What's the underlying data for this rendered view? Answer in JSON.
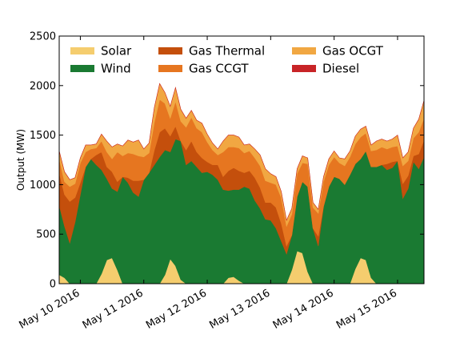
{
  "chart_data": {
    "type": "area",
    "stacked": true,
    "title": "",
    "xlabel": "",
    "ylabel": "Output (MW)",
    "ylim": [
      0,
      2500
    ],
    "yticks": [
      0,
      500,
      1000,
      1500,
      2000,
      2500
    ],
    "xlim": [
      "2016-05-09T16:00",
      "2016-05-15T10:00"
    ],
    "xticks": [
      {
        "x": "2016-05-10T00:00",
        "label": "May 10 2016"
      },
      {
        "x": "2016-05-11T00:00",
        "label": "May 11 2016"
      },
      {
        "x": "2016-05-12T00:00",
        "label": "May 12 2016"
      },
      {
        "x": "2016-05-13T00:00",
        "label": "May 13 2016"
      },
      {
        "x": "2016-05-14T00:00",
        "label": "May 14 2016"
      },
      {
        "x": "2016-05-15T00:00",
        "label": "May 15 2016"
      }
    ],
    "grid": false,
    "legend": {
      "placement": "top",
      "columns": 3
    },
    "x": [
      "2016-05-09T16:00",
      "2016-05-09T18:00",
      "2016-05-09T20:00",
      "2016-05-09T22:00",
      "2016-05-10T00:00",
      "2016-05-10T02:00",
      "2016-05-10T04:00",
      "2016-05-10T06:00",
      "2016-05-10T08:00",
      "2016-05-10T10:00",
      "2016-05-10T12:00",
      "2016-05-10T14:00",
      "2016-05-10T16:00",
      "2016-05-10T18:00",
      "2016-05-10T20:00",
      "2016-05-10T22:00",
      "2016-05-11T00:00",
      "2016-05-11T02:00",
      "2016-05-11T04:00",
      "2016-05-11T06:00",
      "2016-05-11T08:00",
      "2016-05-11T10:00",
      "2016-05-11T12:00",
      "2016-05-11T14:00",
      "2016-05-11T16:00",
      "2016-05-11T18:00",
      "2016-05-11T20:00",
      "2016-05-11T22:00",
      "2016-05-12T00:00",
      "2016-05-12T02:00",
      "2016-05-12T04:00",
      "2016-05-12T06:00",
      "2016-05-12T08:00",
      "2016-05-12T10:00",
      "2016-05-12T12:00",
      "2016-05-12T14:00",
      "2016-05-12T16:00",
      "2016-05-12T18:00",
      "2016-05-12T20:00",
      "2016-05-12T22:00",
      "2016-05-13T00:00",
      "2016-05-13T02:00",
      "2016-05-13T04:00",
      "2016-05-13T06:00",
      "2016-05-13T08:00",
      "2016-05-13T10:00",
      "2016-05-13T12:00",
      "2016-05-13T14:00",
      "2016-05-13T16:00",
      "2016-05-13T18:00",
      "2016-05-13T20:00",
      "2016-05-13T22:00",
      "2016-05-14T00:00",
      "2016-05-14T02:00",
      "2016-05-14T04:00",
      "2016-05-14T06:00",
      "2016-05-14T08:00",
      "2016-05-14T10:00",
      "2016-05-14T12:00",
      "2016-05-14T14:00",
      "2016-05-14T16:00",
      "2016-05-14T18:00",
      "2016-05-14T20:00",
      "2016-05-14T22:00",
      "2016-05-15T00:00",
      "2016-05-15T02:00",
      "2016-05-15T04:00",
      "2016-05-15T06:00",
      "2016-05-15T08:00",
      "2016-05-15T10:00"
    ],
    "series": [
      {
        "name": "Solar",
        "color": "#f5cd6e",
        "values": [
          90,
          60,
          0,
          0,
          0,
          0,
          0,
          0,
          100,
          240,
          260,
          140,
          0,
          0,
          0,
          0,
          0,
          0,
          0,
          0,
          90,
          250,
          180,
          40,
          0,
          0,
          0,
          0,
          0,
          0,
          0,
          0,
          60,
          70,
          30,
          0,
          0,
          0,
          0,
          0,
          0,
          0,
          0,
          0,
          140,
          330,
          310,
          120,
          0,
          0,
          0,
          0,
          0,
          0,
          0,
          0,
          150,
          260,
          240,
          60,
          0,
          0,
          0,
          0,
          0,
          0,
          0,
          0,
          0,
          0
        ]
      },
      {
        "name": "Wind",
        "color": "#1a7a32",
        "values": [
          700,
          520,
          410,
          620,
          900,
          1180,
          1260,
          1200,
          1050,
          820,
          700,
          790,
          1080,
          1020,
          920,
          880,
          1050,
          1120,
          1200,
          1280,
          1260,
          1080,
          1280,
          1400,
          1200,
          1240,
          1180,
          1120,
          1130,
          1100,
          1050,
          950,
          880,
          880,
          920,
          980,
          960,
          840,
          760,
          650,
          640,
          560,
          430,
          300,
          350,
          550,
          720,
          860,
          560,
          380,
          780,
          980,
          1080,
          1060,
          1000,
          1100,
          1060,
          1000,
          1100,
          1120,
          1180,
          1200,
          1150,
          1170,
          1240,
          860,
          960,
          1230,
          1160,
          1280
        ]
      },
      {
        "name": "Gas Thermal",
        "color": "#c44f0c",
        "values": [
          330,
          320,
          420,
          250,
          120,
          0,
          0,
          100,
          180,
          120,
          170,
          100,
          0,
          50,
          120,
          160,
          0,
          0,
          150,
          250,
          220,
          160,
          130,
          0,
          150,
          200,
          150,
          150,
          100,
          100,
          150,
          130,
          200,
          220,
          190,
          140,
          180,
          230,
          210,
          170,
          180,
          210,
          180,
          80,
          0,
          0,
          0,
          0,
          0,
          100,
          0,
          0,
          0,
          0,
          0,
          0,
          0,
          0,
          0,
          0,
          0,
          0,
          60,
          60,
          0,
          150,
          130,
          60,
          150,
          170
        ]
      },
      {
        "name": "Gas CCGT",
        "color": "#e67620",
        "values": [
          140,
          130,
          150,
          140,
          200,
          150,
          100,
          70,
          110,
          150,
          130,
          300,
          210,
          250,
          270,
          250,
          230,
          200,
          280,
          330,
          250,
          180,
          250,
          200,
          230,
          240,
          240,
          260,
          200,
          150,
          100,
          250,
          240,
          210,
          230,
          200,
          200,
          200,
          220,
          220,
          200,
          230,
          260,
          200,
          210,
          230,
          190,
          230,
          210,
          230,
          250,
          220,
          200,
          160,
          190,
          180,
          200,
          220,
          180,
          160,
          170,
          180,
          150,
          150,
          150,
          180,
          150,
          180,
          220,
          220
        ]
      },
      {
        "name": "Gas OCGT",
        "color": "#f1a742",
        "values": [
          80,
          100,
          70,
          60,
          50,
          70,
          40,
          40,
          70,
          110,
          120,
          80,
          100,
          130,
          120,
          160,
          80,
          100,
          150,
          160,
          110,
          120,
          140,
          120,
          90,
          70,
          80,
          90,
          80,
          70,
          60,
          110,
          120,
          120,
          110,
          80,
          70,
          90,
          110,
          120,
          90,
          80,
          60,
          60,
          60,
          50,
          70,
          60,
          50,
          40,
          50,
          60,
          60,
          50,
          70,
          60,
          80,
          80,
          70,
          60,
          90,
          80,
          80,
          80,
          110,
          80,
          90,
          100,
          130,
          180
        ]
      },
      {
        "name": "Diesel",
        "color": "#c82427",
        "values": [
          0,
          0,
          0,
          0,
          0,
          0,
          0,
          0,
          0,
          0,
          0,
          0,
          0,
          0,
          0,
          0,
          0,
          0,
          0,
          0,
          0,
          0,
          0,
          0,
          0,
          0,
          0,
          0,
          0,
          0,
          0,
          0,
          0,
          0,
          0,
          0,
          0,
          0,
          0,
          0,
          0,
          0,
          0,
          0,
          0,
          0,
          0,
          0,
          0,
          0,
          0,
          0,
          0,
          0,
          0,
          0,
          0,
          0,
          0,
          0,
          0,
          0,
          0,
          0,
          0,
          0,
          0,
          0,
          0,
          0
        ]
      }
    ],
    "legend_order": [
      "Solar",
      "Gas Thermal",
      "Gas OCGT",
      "Wind",
      "Gas CCGT",
      "Diesel"
    ]
  }
}
